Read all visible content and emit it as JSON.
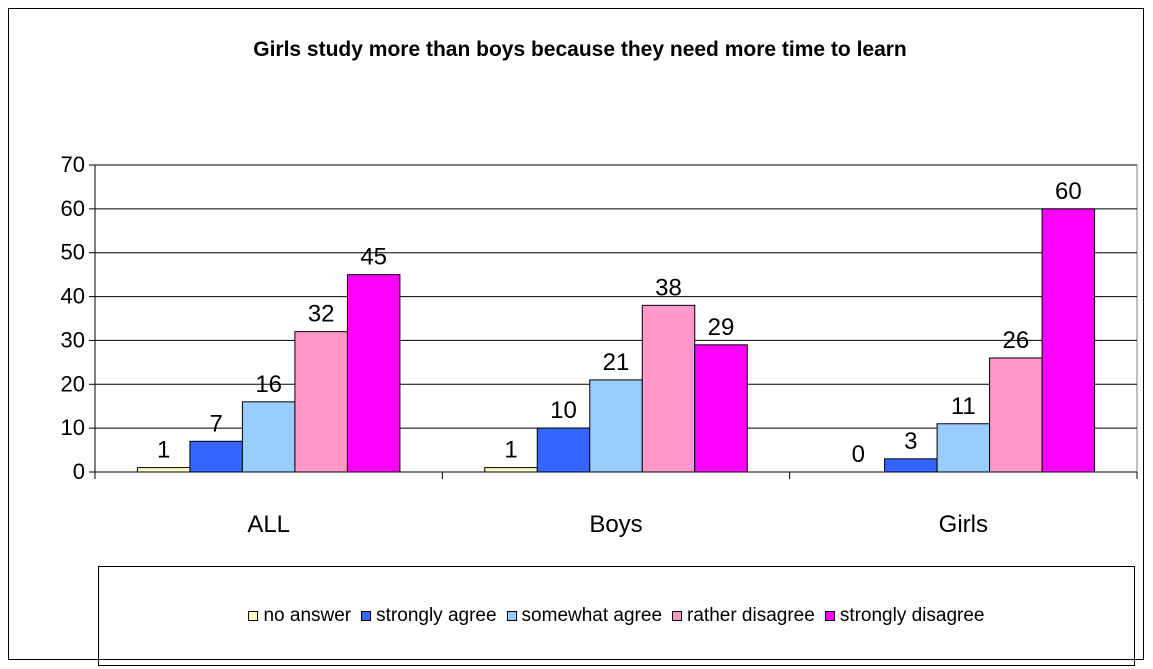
{
  "chart_data": {
    "type": "bar",
    "title": "Girls study more than boys because they need more time to learn",
    "categories": [
      "ALL",
      "Boys",
      "Girls"
    ],
    "series": [
      {
        "name": "no answer",
        "color": "#ffffcc",
        "values": [
          1,
          1,
          0
        ]
      },
      {
        "name": "strongly agree",
        "color": "#3366ff",
        "values": [
          7,
          10,
          3
        ]
      },
      {
        "name": "somewhat agree",
        "color": "#99ccff",
        "values": [
          16,
          21,
          11
        ]
      },
      {
        "name": "rather disagree",
        "color": "#ff99cc",
        "values": [
          32,
          38,
          26
        ]
      },
      {
        "name": "strongly disagree",
        "color": "#ff00ff",
        "values": [
          45,
          29,
          60
        ]
      }
    ],
    "yticks": [
      0,
      10,
      20,
      30,
      40,
      50,
      60,
      70
    ],
    "ylim": [
      0,
      70
    ],
    "xlabel": "",
    "ylabel": "",
    "grid": true,
    "legend": "bottom"
  }
}
